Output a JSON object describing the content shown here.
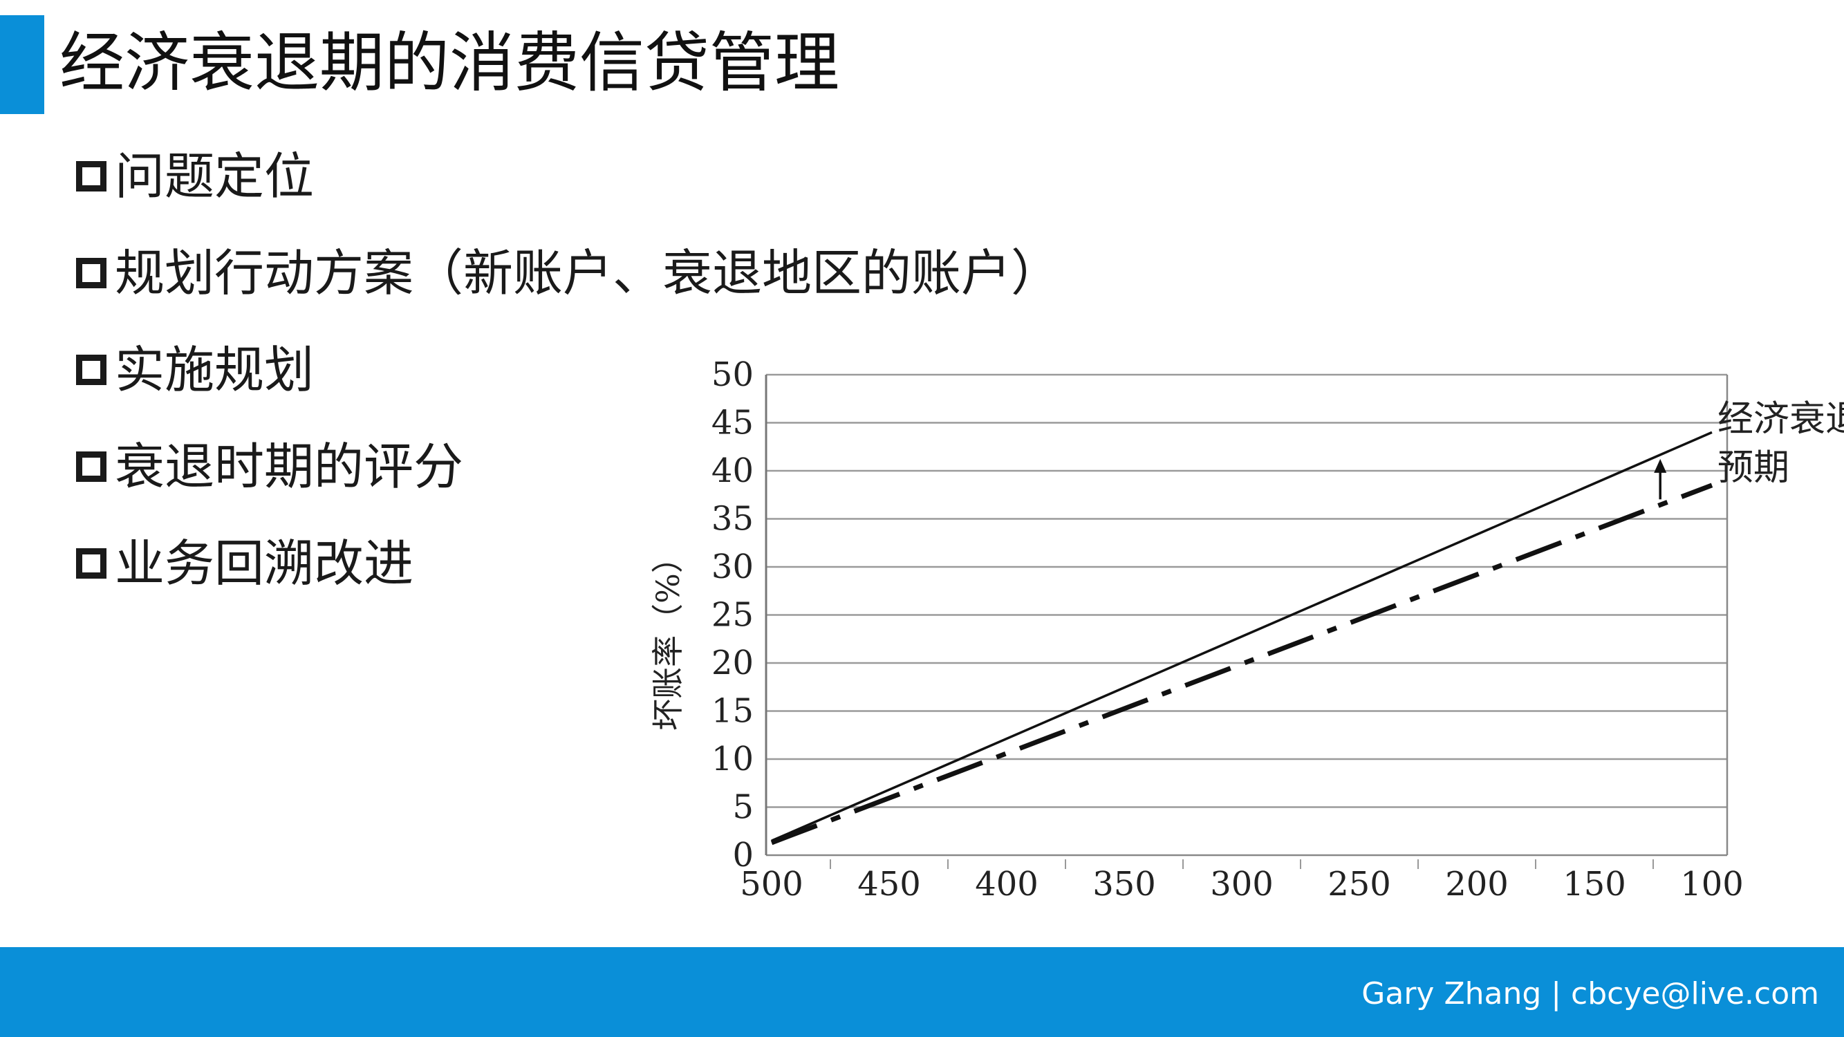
{
  "slide": {
    "title": "经济衰退期的消费信贷管理",
    "bullets": [
      "问题定位",
      "规划行动方案（新账户、衰退地区的账户）",
      "实施规划",
      "衰退时期的评分",
      "业务回溯改进"
    ],
    "footer": "Gary Zhang | cbcye@live.com",
    "accent_color": "#0a8fd8",
    "bullet_icon": "hollow-square-icon"
  },
  "chart_data": {
    "type": "line",
    "ylabel": "坏账率（%）",
    "xlabel": "",
    "x_ticks": [
      500,
      450,
      400,
      350,
      300,
      250,
      200,
      150,
      100
    ],
    "y_ticks": [
      0,
      5,
      10,
      15,
      20,
      25,
      30,
      35,
      40,
      45,
      50
    ],
    "ylim": [
      0,
      50
    ],
    "x_range": [
      500,
      100
    ],
    "grid": "horizontal",
    "series": [
      {
        "name": "经济衰退",
        "style": "solid",
        "x": [
          500,
          100
        ],
        "y": [
          1.5,
          44
        ]
      },
      {
        "name": "预期",
        "style": "dash-dot",
        "x": [
          500,
          100
        ],
        "y": [
          1.3,
          38.5
        ]
      }
    ],
    "annotations": [
      {
        "type": "arrow",
        "from_series": "预期",
        "to_series": "经济衰退",
        "x": 122
      }
    ]
  }
}
